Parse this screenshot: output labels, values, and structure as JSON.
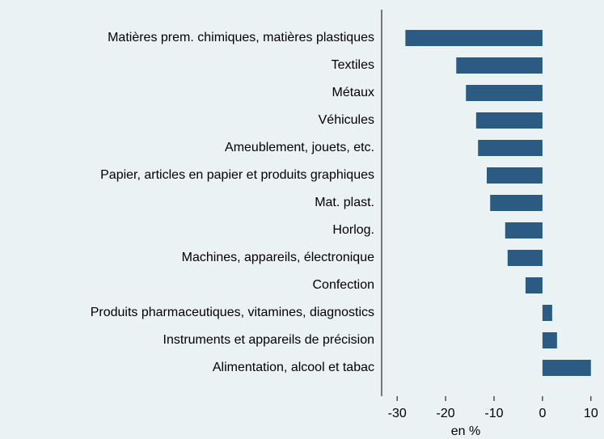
{
  "chart_data": {
    "type": "hbar",
    "categories": [
      "Matières prem. chimiques, matières plastiques",
      "Textiles",
      "Métaux",
      "Véhicules",
      "Ameublement, jouets, etc.",
      "Papier, articles en papier et produits graphiques",
      "Mat. plast.",
      "Horlog.",
      "Machines, appareils, électronique",
      "Confection",
      "Produits pharmaceutiques, vitamines, diagnostics",
      "Instruments et appareils de précision",
      "Alimentation, alcool et tabac"
    ],
    "values": [
      -28.3,
      -17.8,
      -15.8,
      -13.7,
      -13.3,
      -11.5,
      -10.8,
      -7.7,
      -7.2,
      -3.5,
      2,
      3,
      10
    ],
    "color": "#2b5b82",
    "x_label": "en %",
    "xlim": [
      -33.2,
      12.7
    ],
    "xticks": [
      -30,
      -20,
      -10,
      0,
      10
    ]
  }
}
